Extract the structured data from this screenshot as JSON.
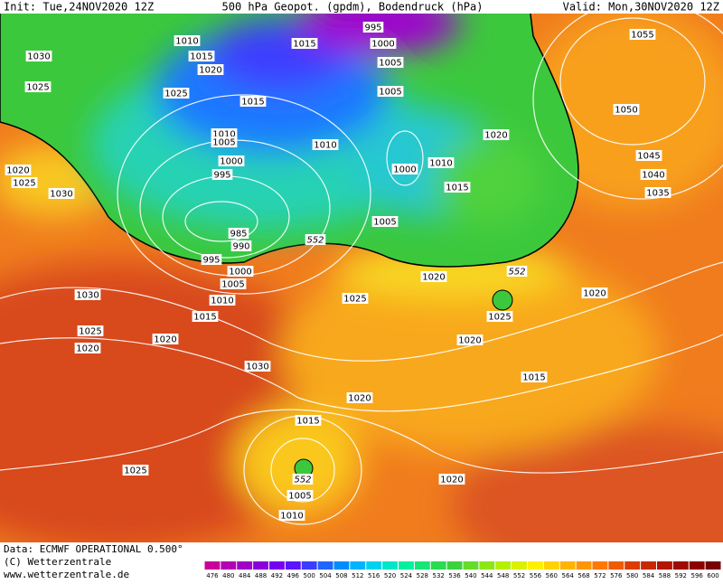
{
  "header": {
    "init": "Init: Tue,24NOV2020 12Z",
    "title": "500 hPa Geopot. (gpdm), Bodendruck (hPa)",
    "valid": "Valid: Mon,30NOV2020 12Z"
  },
  "map": {
    "isobar_labels": [
      "1010",
      "1015",
      "1020",
      "1015",
      "995",
      "1000",
      "1005",
      "1005",
      "1030",
      "1025",
      "1025",
      "1015",
      "1010",
      "1005",
      "1010",
      "1020",
      "1055",
      "1050",
      "1045",
      "1040",
      "1035",
      "1000",
      "995",
      "1000",
      "1010",
      "1015",
      "1020",
      "1025",
      "1030",
      "1005",
      "985",
      "990",
      "995",
      "552",
      "1000",
      "1005",
      "1010",
      "1015",
      "1030",
      "1025",
      "1020",
      "552",
      "1020",
      "1025",
      "1025",
      "1020",
      "1020",
      "1020",
      "1030",
      "1015",
      "1020",
      "1015",
      "1025",
      "552",
      "1020",
      "1005",
      "1010"
    ]
  },
  "colorbar": {
    "values": [
      476,
      480,
      484,
      488,
      492,
      496,
      500,
      504,
      508,
      512,
      516,
      520,
      524,
      528,
      532,
      536,
      540,
      544,
      548,
      552,
      556,
      560,
      564,
      568,
      572,
      576,
      580,
      584,
      588,
      592,
      596,
      600
    ],
    "colors": [
      "#c8009c",
      "#b400b4",
      "#a000c8",
      "#8c00dc",
      "#7800f0",
      "#5a14ff",
      "#3c3cff",
      "#1e64ff",
      "#008cff",
      "#00b4ff",
      "#00d2f0",
      "#00e6c8",
      "#00f0a0",
      "#14e678",
      "#28dc50",
      "#3cd23c",
      "#64dc28",
      "#8ce614",
      "#b4f000",
      "#dcf000",
      "#fff000",
      "#ffd200",
      "#ffb400",
      "#ff9600",
      "#ff7800",
      "#f05a00",
      "#dc3c00",
      "#c82800",
      "#b41400",
      "#a00a00",
      "#8c0000",
      "#780000"
    ]
  },
  "footer": {
    "data": "Data: ECMWF OPERATIONAL 0.500°",
    "copyright": "(C) Wetterzentrale",
    "url": "www.wetterzentrale.de"
  }
}
